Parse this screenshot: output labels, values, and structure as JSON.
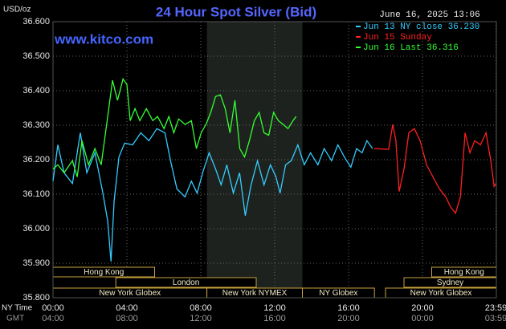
{
  "chart_data": {
    "type": "line",
    "title": "24 Hour Spot Silver (Bid)",
    "watermark": "www.kitco.com",
    "timestamp": "June 16, 2025 13:06",
    "y_label": "USD/oz",
    "x_row_labels": [
      "NY Time",
      "GMT"
    ],
    "xlim": [
      0,
      24
    ],
    "ylim": [
      35.8,
      36.6
    ],
    "yticks": [
      {
        "value": 35.8,
        "label": "35.800"
      },
      {
        "value": 35.9,
        "label": "35.900"
      },
      {
        "value": 36.0,
        "label": "36.000"
      },
      {
        "value": 36.1,
        "label": "36.100"
      },
      {
        "value": 36.2,
        "label": "36.200"
      },
      {
        "value": 36.3,
        "label": "36.300"
      },
      {
        "value": 36.4,
        "label": "36.400"
      },
      {
        "value": 36.5,
        "label": "36.500"
      },
      {
        "value": 36.6,
        "label": "36.600"
      }
    ],
    "xticks": [
      {
        "value": 0,
        "label": "00:00"
      },
      {
        "value": 4,
        "label": "04:00"
      },
      {
        "value": 8,
        "label": "08:00"
      },
      {
        "value": 12,
        "label": "12:00"
      },
      {
        "value": 16,
        "label": "16:00"
      },
      {
        "value": 20,
        "label": "20:00"
      },
      {
        "value": 23.98,
        "label": "23:59"
      }
    ],
    "xticks_gmt": [
      {
        "value": 0,
        "label": "04:00"
      },
      {
        "value": 4,
        "label": "08:00"
      },
      {
        "value": 8,
        "label": "12:00"
      },
      {
        "value": 12,
        "label": "16:00"
      },
      {
        "value": 16,
        "label": "20:00"
      },
      {
        "value": 20,
        "label": "00:00"
      },
      {
        "value": 23.98,
        "label": "03:59"
      }
    ],
    "grid": true,
    "shaded_x": [
      8.33,
      13.5
    ],
    "sessions": [
      [
        {
          "label": "Hong Kong",
          "start": 0,
          "end": 5.5
        },
        {
          "label": "Hong Kong",
          "start": 20.5,
          "end": 24
        }
      ],
      [
        {
          "label": "London",
          "start": 3.4,
          "end": 11
        },
        {
          "label": "Sydney",
          "start": 19,
          "end": 24
        }
      ],
      [
        {
          "label": "New York Globex",
          "start": 0,
          "end": 8.33
        },
        {
          "label": "New York NYMEX",
          "start": 8.33,
          "end": 13.5
        },
        {
          "label": "NY Globex",
          "start": 13.5,
          "end": 17.4
        },
        {
          "label": "New York Globex",
          "start": 18,
          "end": 24
        }
      ]
    ],
    "series": [
      {
        "name": "Jun 13 NY close 36.230",
        "color": "#33ccff",
        "x": [
          0,
          0.26,
          0.6,
          1.05,
          1.48,
          1.83,
          2.27,
          2.7,
          2.96,
          3.14,
          3.31,
          3.57,
          3.88,
          4.31,
          4.75,
          5.19,
          5.62,
          6.06,
          6.36,
          6.71,
          7.15,
          7.49,
          7.8,
          8.1,
          8.45,
          8.8,
          9.1,
          9.41,
          9.76,
          10.1,
          10.41,
          10.72,
          11.07,
          11.42,
          11.77,
          12.07,
          12.29,
          12.59,
          12.9,
          13.25,
          13.6,
          13.94,
          14.34,
          14.68,
          15.08,
          15.42,
          15.77,
          16.12,
          16.43,
          16.73,
          16.99,
          17.3
        ],
        "values": [
          36.138,
          36.243,
          36.162,
          36.131,
          36.278,
          36.162,
          36.22,
          36.103,
          36.022,
          35.905,
          36.08,
          36.208,
          36.248,
          36.243,
          36.278,
          36.255,
          36.29,
          36.278,
          36.197,
          36.115,
          36.092,
          36.138,
          36.103,
          36.162,
          36.22,
          36.173,
          36.127,
          36.185,
          36.103,
          36.162,
          36.038,
          36.127,
          36.197,
          36.127,
          36.185,
          36.15,
          36.103,
          36.185,
          36.197,
          36.243,
          36.185,
          36.22,
          36.185,
          36.232,
          36.197,
          36.243,
          36.208,
          36.178,
          36.232,
          36.22,
          36.255,
          36.232
        ]
      },
      {
        "name": "Jun 15 Sunday",
        "color": "#ff2020",
        "x": [
          17.39,
          18.17,
          18.39,
          18.56,
          18.74,
          19.0,
          19.26,
          19.56,
          19.87,
          20.22,
          20.57,
          20.92,
          21.26,
          21.53,
          21.79,
          22.05,
          22.31,
          22.57,
          22.83,
          23.14,
          23.44,
          23.7,
          23.88,
          23.98
        ],
        "values": [
          36.232,
          36.23,
          36.302,
          36.255,
          36.108,
          36.173,
          36.278,
          36.29,
          36.255,
          36.185,
          36.15,
          36.115,
          36.092,
          36.062,
          36.045,
          36.092,
          36.278,
          36.22,
          36.255,
          36.243,
          36.278,
          36.197,
          36.122,
          36.131
        ]
      },
      {
        "name": "Jun 16 Last 36.316",
        "color": "#33ff33",
        "x": [
          0,
          0.26,
          0.6,
          1.05,
          1.31,
          1.57,
          1.92,
          2.27,
          2.61,
          2.96,
          3.22,
          3.49,
          3.79,
          4.0,
          4.18,
          4.44,
          4.7,
          5.05,
          5.4,
          5.66,
          6.01,
          6.27,
          6.54,
          6.8,
          7.15,
          7.49,
          7.76,
          8.02,
          8.28,
          8.54,
          8.8,
          9.06,
          9.32,
          9.58,
          9.85,
          10.11,
          10.37,
          10.63,
          10.9,
          11.16,
          11.42,
          11.68,
          11.94,
          12.2,
          12.46,
          12.72,
          12.99,
          13.16
        ],
        "values": [
          36.173,
          36.185,
          36.162,
          36.197,
          36.15,
          36.255,
          36.185,
          36.232,
          36.185,
          36.325,
          36.43,
          36.372,
          36.434,
          36.418,
          36.313,
          36.348,
          36.313,
          36.348,
          36.313,
          36.325,
          36.29,
          36.325,
          36.278,
          36.318,
          36.302,
          36.313,
          36.232,
          36.278,
          36.302,
          36.337,
          36.383,
          36.388,
          36.348,
          36.278,
          36.372,
          36.232,
          36.208,
          36.255,
          36.313,
          36.337,
          36.278,
          36.271,
          36.337,
          36.313,
          36.302,
          36.29,
          36.313,
          36.325
        ]
      }
    ]
  }
}
